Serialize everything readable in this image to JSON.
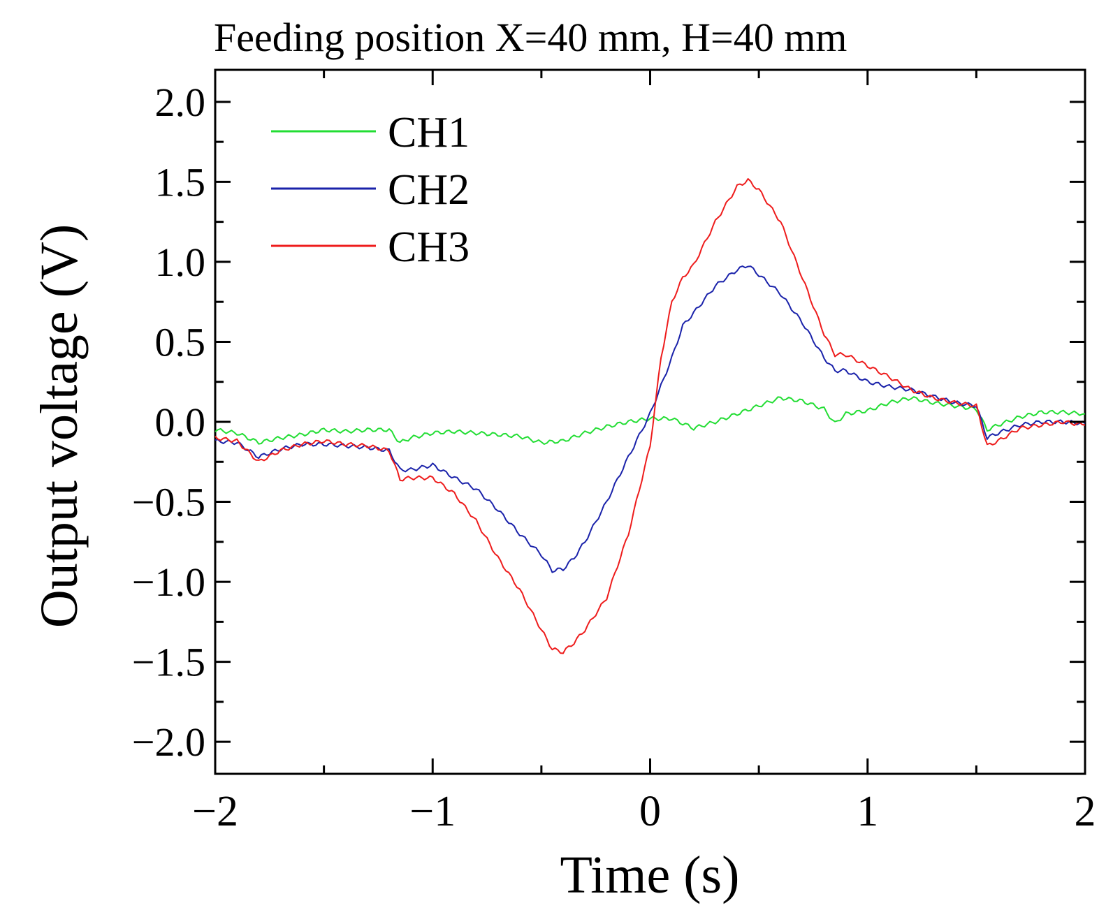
{
  "chart_data": {
    "type": "line",
    "title": "Feeding position X=40 mm, H=40 mm",
    "xlabel": "Time (s)",
    "ylabel": "Output voltage (V)",
    "xlim": [
      -2,
      2
    ],
    "ylim": [
      -2.2,
      2.2
    ],
    "xticks": [
      -2,
      -1,
      0,
      1,
      2
    ],
    "xtick_labels": [
      "−2",
      "−1",
      "0",
      "1",
      "2"
    ],
    "yticks": [
      2.0,
      1.5,
      1.0,
      0.5,
      0.0,
      -0.5,
      -1.0,
      -1.5,
      -2.0
    ],
    "ytick_labels": [
      "2.0",
      "1.5",
      "1.0",
      "0.5",
      "0.0",
      "−0.5",
      "−1.0",
      "−1.5",
      "−2.0"
    ],
    "legend_position": "top-left",
    "series": [
      {
        "name": "CH1",
        "color": "#22dd33",
        "x": [
          -2.0,
          -1.9,
          -1.8,
          -1.7,
          -1.6,
          -1.5,
          -1.4,
          -1.3,
          -1.2,
          -1.15,
          -1.1,
          -1.0,
          -0.9,
          -0.8,
          -0.7,
          -0.6,
          -0.5,
          -0.4,
          -0.3,
          -0.2,
          -0.1,
          0.0,
          0.1,
          0.2,
          0.25,
          0.3,
          0.4,
          0.5,
          0.6,
          0.7,
          0.8,
          0.85,
          0.9,
          1.0,
          1.1,
          1.2,
          1.3,
          1.4,
          1.5,
          1.55,
          1.6,
          1.7,
          1.8,
          1.9,
          2.0
        ],
        "values": [
          -0.05,
          -0.07,
          -0.13,
          -0.1,
          -0.08,
          -0.05,
          -0.06,
          -0.05,
          -0.05,
          -0.13,
          -0.1,
          -0.07,
          -0.06,
          -0.07,
          -0.08,
          -0.09,
          -0.13,
          -0.12,
          -0.07,
          -0.03,
          0.0,
          0.02,
          0.02,
          -0.04,
          -0.02,
          0.0,
          0.05,
          0.1,
          0.15,
          0.13,
          0.08,
          -0.01,
          0.05,
          0.07,
          0.12,
          0.15,
          0.12,
          0.1,
          0.08,
          -0.05,
          -0.02,
          0.03,
          0.06,
          0.06,
          0.05
        ]
      },
      {
        "name": "CH2",
        "color": "#1a22aa",
        "x": [
          -2.0,
          -1.9,
          -1.8,
          -1.7,
          -1.6,
          -1.5,
          -1.4,
          -1.3,
          -1.2,
          -1.15,
          -1.1,
          -1.0,
          -0.9,
          -0.8,
          -0.7,
          -0.6,
          -0.5,
          -0.45,
          -0.4,
          -0.35,
          -0.3,
          -0.2,
          -0.1,
          0.0,
          0.1,
          0.15,
          0.2,
          0.3,
          0.4,
          0.45,
          0.5,
          0.6,
          0.7,
          0.8,
          0.85,
          0.9,
          1.0,
          1.1,
          1.2,
          1.3,
          1.4,
          1.5,
          1.55,
          1.6,
          1.7,
          1.8,
          1.9,
          2.0
        ],
        "values": [
          -0.12,
          -0.13,
          -0.22,
          -0.17,
          -0.14,
          -0.14,
          -0.15,
          -0.16,
          -0.18,
          -0.3,
          -0.3,
          -0.27,
          -0.35,
          -0.42,
          -0.55,
          -0.7,
          -0.83,
          -0.93,
          -0.92,
          -0.85,
          -0.75,
          -0.5,
          -0.22,
          0.05,
          0.4,
          0.6,
          0.68,
          0.85,
          0.95,
          0.98,
          0.92,
          0.8,
          0.62,
          0.4,
          0.32,
          0.32,
          0.25,
          0.22,
          0.2,
          0.16,
          0.12,
          0.1,
          -0.1,
          -0.07,
          -0.02,
          0.0,
          0.0,
          -0.01
        ]
      },
      {
        "name": "CH3",
        "color": "#ee1c1c",
        "x": [
          -2.0,
          -1.9,
          -1.8,
          -1.7,
          -1.6,
          -1.5,
          -1.4,
          -1.3,
          -1.2,
          -1.15,
          -1.1,
          -1.0,
          -0.9,
          -0.8,
          -0.7,
          -0.6,
          -0.5,
          -0.45,
          -0.4,
          -0.35,
          -0.3,
          -0.2,
          -0.1,
          0.0,
          0.05,
          0.1,
          0.15,
          0.2,
          0.3,
          0.4,
          0.45,
          0.5,
          0.6,
          0.7,
          0.8,
          0.85,
          0.9,
          1.0,
          1.1,
          1.2,
          1.3,
          1.4,
          1.5,
          1.55,
          1.6,
          1.7,
          1.8,
          1.9,
          2.0
        ],
        "values": [
          -0.1,
          -0.12,
          -0.25,
          -0.18,
          -0.14,
          -0.12,
          -0.14,
          -0.15,
          -0.18,
          -0.36,
          -0.35,
          -0.35,
          -0.45,
          -0.62,
          -0.85,
          -1.05,
          -1.3,
          -1.42,
          -1.44,
          -1.38,
          -1.3,
          -1.1,
          -0.7,
          -0.15,
          0.4,
          0.75,
          0.9,
          0.98,
          1.25,
          1.47,
          1.51,
          1.45,
          1.25,
          0.9,
          0.55,
          0.42,
          0.42,
          0.35,
          0.28,
          0.2,
          0.15,
          0.12,
          0.1,
          -0.15,
          -0.12,
          -0.04,
          -0.02,
          0.0,
          -0.02
        ]
      }
    ]
  }
}
